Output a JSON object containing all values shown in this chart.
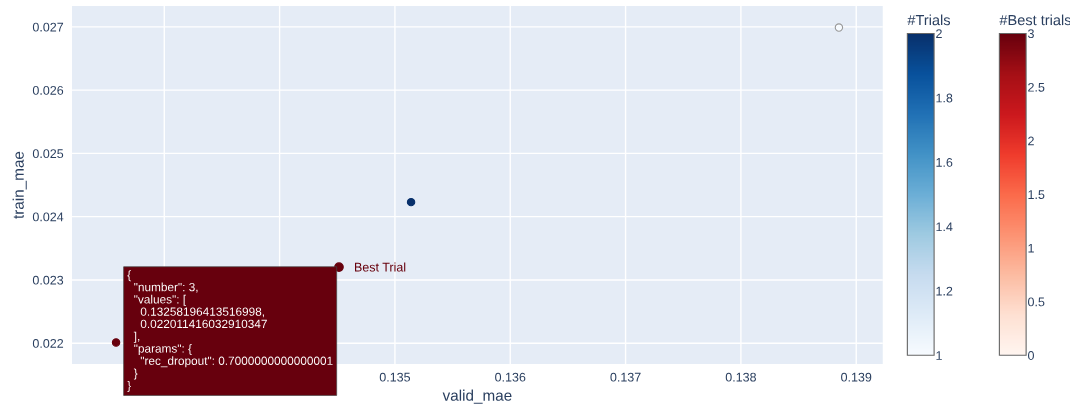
{
  "chart_data": [
    {
      "type": "scatter",
      "xlabel": "valid_mae",
      "ylabel": "train_mae",
      "xlim": [
        0.1322,
        0.13923
      ],
      "ylim": [
        0.02167,
        0.02733
      ],
      "xticks": [
        {
          "value": 0.133,
          "label": null
        },
        {
          "value": 0.134,
          "label": null
        },
        0.135,
        0.136,
        0.137,
        0.138,
        0.139
      ],
      "yticks": [
        0.022,
        0.023,
        0.024,
        0.025,
        0.026,
        0.027
      ],
      "grid": true,
      "marker": "circle",
      "clabel": "#Trials",
      "clim": [
        1,
        2
      ],
      "cticks": [
        1,
        1.2,
        1.4,
        1.6,
        1.8,
        2
      ],
      "series": [
        {
          "x": [
            0.13514,
            0.13885
          ],
          "values": [
            0.02423,
            0.02699
          ],
          "cvalues": [
            2,
            1
          ]
        }
      ]
    },
    {
      "type": "scatter",
      "xlim": [
        0.1322,
        0.13923
      ],
      "ylim": [
        0.02167,
        0.02733
      ],
      "tick_labels": false,
      "legend": "bottom left",
      "marker": "circle",
      "clabel": "#Best trials",
      "clim": [
        0,
        3
      ],
      "cticks": [
        0,
        0.5,
        1,
        1.5,
        2,
        2.5,
        3
      ],
      "series": [
        {
          "name": "Best Trial",
          "x": [
            0.132582
          ],
          "values": [
            0.022011
          ],
          "cvalues": [
            3
          ]
        }
      ],
      "annotations": [
        "{\n  \"number\": 3,\n  \"values\": [\n    0.13258196413516998,\n    0.022011416032910347\n  ],\n  \"params\": {\n    \"rec_dropout\": 0.7000000000000001\n  }\n}"
      ]
    }
  ]
}
